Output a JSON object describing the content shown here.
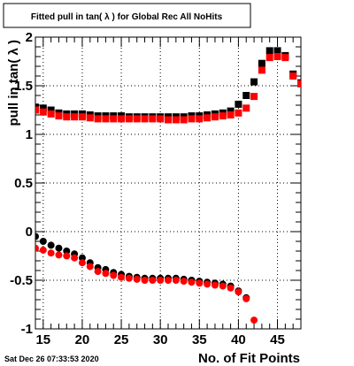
{
  "chart_data": {
    "type": "scatter",
    "title": "Fitted pull in tan( λ ) for Global Rec All NoHits",
    "xlabel": "No. of Fit Points",
    "ylabel": "pull in tan( λ )",
    "xlim": [
      14,
      48
    ],
    "ylim": [
      -1,
      2
    ],
    "grid": true,
    "legend": "none",
    "x_ticks": [
      15,
      20,
      25,
      30,
      35,
      40,
      45
    ],
    "y_ticks": [
      -1,
      -0.5,
      0,
      0.5,
      1,
      1.5,
      2
    ],
    "series": [
      {
        "color": "#000000",
        "marker": "square",
        "x": [
          14,
          15,
          16,
          17,
          18,
          19,
          20,
          21,
          22,
          23,
          24,
          25,
          26,
          27,
          28,
          29,
          30,
          31,
          32,
          33,
          34,
          35,
          36,
          37,
          38,
          39,
          40,
          41,
          42,
          43,
          44,
          45,
          46,
          47,
          48
        ],
        "y": [
          1.28,
          1.27,
          1.25,
          1.22,
          1.21,
          1.21,
          1.21,
          1.2,
          1.19,
          1.19,
          1.19,
          1.19,
          1.18,
          1.18,
          1.18,
          1.18,
          1.18,
          1.18,
          1.18,
          1.18,
          1.19,
          1.19,
          1.2,
          1.21,
          1.22,
          1.24,
          1.31,
          1.4,
          1.54,
          1.73,
          1.86,
          1.86,
          1.81,
          1.62,
          1.53
        ]
      },
      {
        "color": "#ff0000",
        "marker": "square",
        "x": [
          14,
          15,
          16,
          17,
          18,
          19,
          20,
          21,
          22,
          23,
          24,
          25,
          26,
          27,
          28,
          29,
          30,
          31,
          32,
          33,
          34,
          35,
          36,
          37,
          38,
          39,
          40,
          41,
          42,
          43,
          44,
          45,
          46,
          47,
          48
        ],
        "y": [
          1.25,
          1.23,
          1.21,
          1.19,
          1.18,
          1.18,
          1.18,
          1.17,
          1.16,
          1.16,
          1.16,
          1.16,
          1.16,
          1.16,
          1.16,
          1.16,
          1.16,
          1.15,
          1.15,
          1.15,
          1.16,
          1.16,
          1.17,
          1.18,
          1.19,
          1.2,
          1.22,
          1.27,
          1.39,
          1.66,
          1.79,
          1.8,
          1.79,
          1.6,
          1.52
        ]
      },
      {
        "color": "#000000",
        "marker": "circle",
        "x": [
          14,
          15,
          16,
          17,
          18,
          19,
          20,
          21,
          22,
          23,
          24,
          25,
          26,
          27,
          28,
          29,
          30,
          31,
          32,
          33,
          34,
          35,
          36,
          37,
          38,
          39,
          40,
          41
        ],
        "y": [
          -0.05,
          -0.1,
          -0.14,
          -0.17,
          -0.2,
          -0.23,
          -0.27,
          -0.32,
          -0.37,
          -0.39,
          -0.42,
          -0.44,
          -0.46,
          -0.47,
          -0.48,
          -0.48,
          -0.48,
          -0.48,
          -0.48,
          -0.49,
          -0.5,
          -0.51,
          -0.52,
          -0.53,
          -0.54,
          -0.56,
          -0.61,
          -0.68
        ]
      },
      {
        "color": "#ff0000",
        "marker": "circle",
        "x": [
          14,
          15,
          16,
          17,
          18,
          19,
          20,
          21,
          22,
          23,
          24,
          25,
          26,
          27,
          28,
          29,
          30,
          31,
          32,
          33,
          34,
          35,
          36,
          37,
          38,
          39,
          40,
          41,
          42
        ],
        "y": [
          -0.17,
          -0.19,
          -0.22,
          -0.24,
          -0.25,
          -0.27,
          -0.32,
          -0.36,
          -0.41,
          -0.43,
          -0.45,
          -0.47,
          -0.48,
          -0.49,
          -0.5,
          -0.5,
          -0.5,
          -0.5,
          -0.5,
          -0.51,
          -0.52,
          -0.53,
          -0.54,
          -0.55,
          -0.56,
          -0.58,
          -0.62,
          -0.69,
          -0.91
        ]
      }
    ]
  },
  "footer": {
    "timestamp": "Sat Dec 26 07:33:53 2020"
  }
}
